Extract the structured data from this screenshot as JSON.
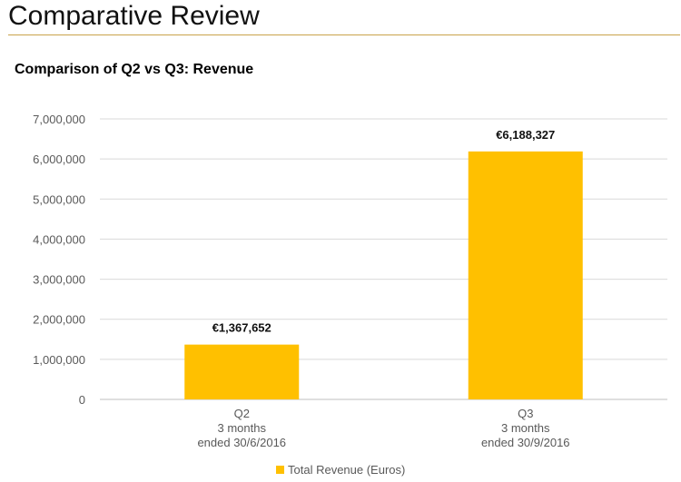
{
  "header": {
    "title": "Comparative Review"
  },
  "colors": {
    "rule": "#c9a24a",
    "bar": "#ffc000",
    "grid": "#d9d9d9"
  },
  "chart_data": {
    "type": "bar",
    "title": "Comparison of Q2 vs Q3: Revenue",
    "categories": [
      [
        "Q2",
        "3 months",
        "ended 30/6/2016"
      ],
      [
        "Q3",
        "3 months",
        "ended 30/9/2016"
      ]
    ],
    "series": [
      {
        "name": "Total Revenue (Euros)",
        "values": [
          1367652,
          6188327
        ],
        "data_labels": [
          "€1,367,652",
          "€6,188,327"
        ]
      }
    ],
    "ylim": [
      0,
      7000000
    ],
    "yticks": [
      0,
      1000000,
      2000000,
      3000000,
      4000000,
      5000000,
      6000000,
      7000000
    ],
    "ytick_labels": [
      "0",
      "1,000,000",
      "2,000,000",
      "3,000,000",
      "4,000,000",
      "5,000,000",
      "6,000,000",
      "7,000,000"
    ],
    "grid": true,
    "legend_position": "bottom-center",
    "xlabel": "",
    "ylabel": ""
  }
}
